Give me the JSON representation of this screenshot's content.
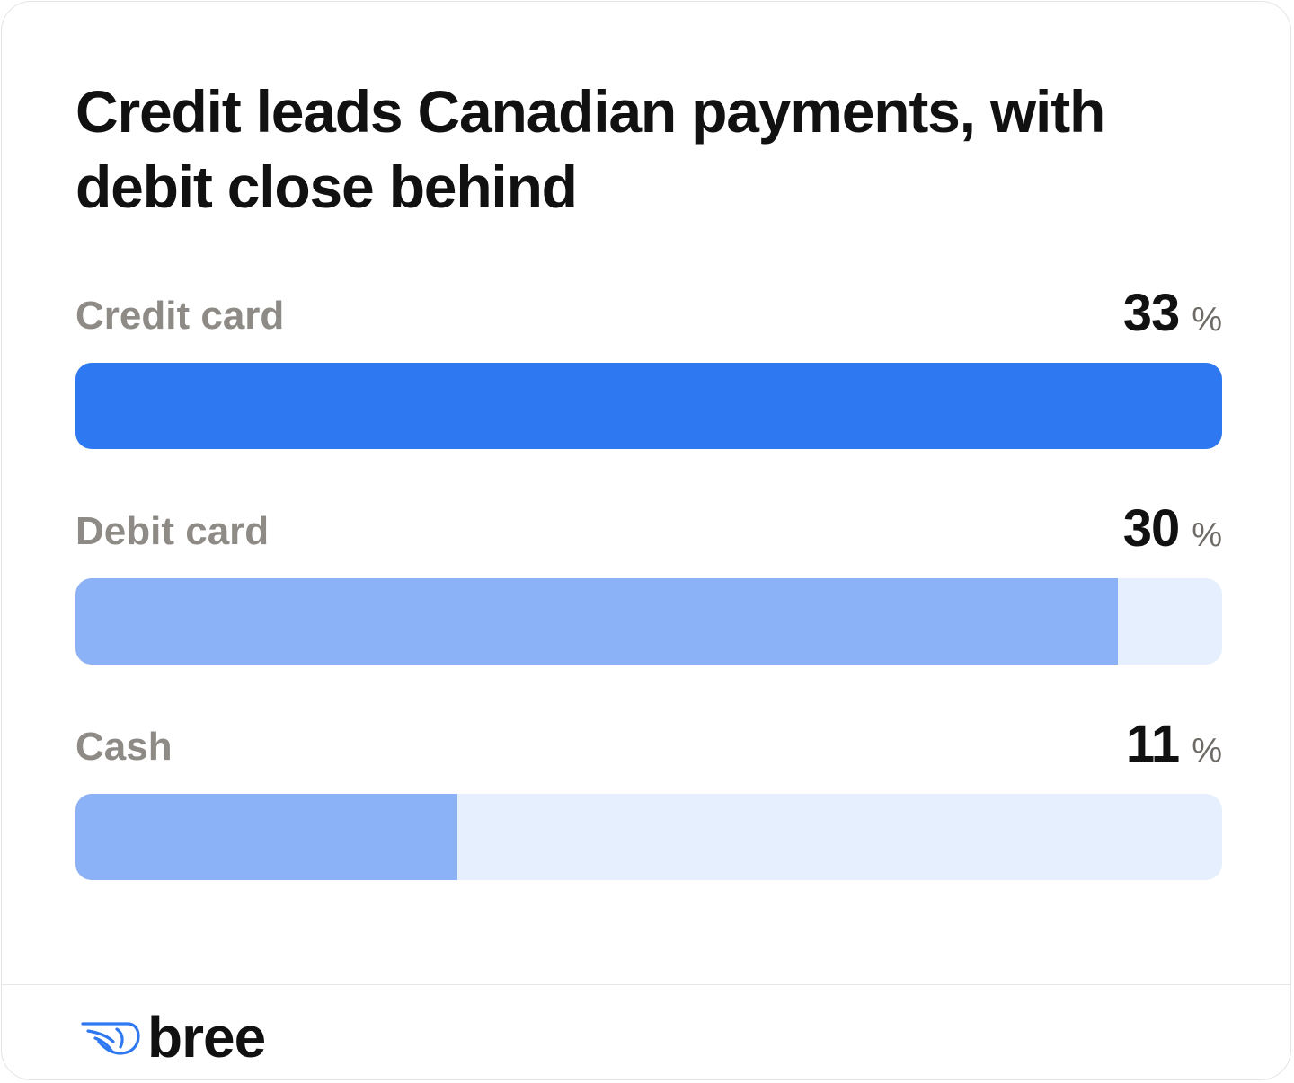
{
  "chart_data": {
    "type": "bar",
    "orientation": "horizontal",
    "title": "Credit leads Canadian payments, with debit close behind",
    "categories": [
      "Credit card",
      "Debit card",
      "Cash"
    ],
    "values": [
      33,
      30,
      11
    ],
    "unit": "%",
    "xlim": [
      0,
      33
    ],
    "grid": false,
    "colors": {
      "highlight": "#2e78f1",
      "bar": "#8bb2f7",
      "track": "#e6effd"
    }
  },
  "brand": {
    "name": "bree",
    "icon": "wing-icon",
    "color": "#2e78f1"
  }
}
